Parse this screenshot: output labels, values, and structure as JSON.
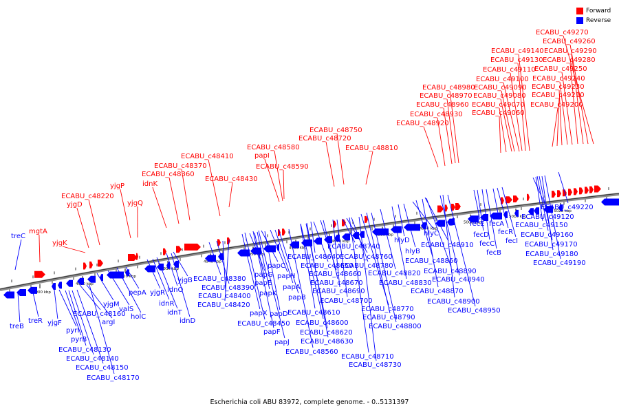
{
  "legend": [
    {
      "label": "Forward",
      "color": "#ff0000"
    },
    {
      "label": "Reverse",
      "color": "#0000ff"
    }
  ],
  "caption": "Escherichia coli ABU 83972, complete genome. - 0..5131397",
  "colors": {
    "forward": "#ff0000",
    "reverse": "#0000ff",
    "backbone": "#888888"
  },
  "scale_ticks": [
    "4900 kbp",
    "4910 kbp",
    "4920 kbp",
    "4930 kbp",
    "4940 kbp",
    "4950 kbp",
    "4960 kbp",
    "4970 kbp",
    "4980 kbp",
    "4990 kbp",
    "5000 kbp",
    "5010 kbp",
    "5020 kbp"
  ],
  "forward_labels": [
    "mgtA",
    "yjgK",
    "yjgD",
    "ECABU_c48220",
    "yjgP",
    "yjgQ",
    "idnK",
    "ECABU_c48360",
    "ECABU_c48370",
    "ECABU_c48410",
    "ECABU_c48430",
    "papI",
    "ECABU_c48580",
    "ECABU_c48590",
    "ECABU_c48720",
    "ECABU_c48750",
    "ECABU_c48810",
    "ECABU_c48920",
    "ECABU_c48930",
    "ECABU_c48960",
    "ECABU_c48970",
    "ECABU_c48980",
    "ECABU_c49060",
    "ECABU_c49070",
    "ECABU_c49080",
    "ECABU_c49090",
    "ECABU_c49100",
    "ECABU_c49110",
    "ECABU_c49130",
    "ECABU_c49140",
    "ECABU_c49200",
    "ECABU_c49210",
    "ECABU_c49230",
    "ECABU_c49240",
    "ECABU_c49250",
    "ECABU_c49280",
    "ECABU_c49290",
    "ECABU_c49260",
    "ECABU_c49270"
  ],
  "reverse_labels": [
    "treC",
    "treB",
    "treR",
    "yjgF",
    "pyrI",
    "pyrB",
    "ECABU_c48130",
    "ECABU_c48140",
    "ECABU_c48150",
    "ECABU_c48160",
    "argI",
    "ECABU_c48170",
    "yjgM",
    "valS",
    "holC",
    "pepA",
    "yjgR",
    "idnR",
    "idnT",
    "idnO",
    "yjgB",
    "idnD",
    "ECABU_c48380",
    "ECABU_c48390",
    "ECABU_c48400",
    "ECABU_c48420",
    "papX",
    "ECABU_c48450",
    "papF",
    "papJ",
    "papG",
    "papE",
    "papK",
    "papD",
    "papC",
    "papH",
    "papA",
    "papB",
    "ECABU_c48560",
    "ECABU_c48610",
    "ECABU_c48600",
    "ECABU_c48620",
    "ECABU_c48630",
    "ECABU_c48640",
    "ECABU_c48650",
    "ECABU_c48660",
    "ECABU_c48670",
    "ECABU_c48690",
    "ECABU_c48700",
    "ECABU_c48710",
    "ECABU_c48730",
    "ECABU_c48740",
    "ECABU_c48760",
    "ECABU_c48780",
    "ECABU_c48770",
    "ECABU_c48790",
    "ECABU_c48800",
    "ECABU_c48820",
    "ECABU_c48830",
    "hlyD",
    "hlyB",
    "hlyC",
    "ECABU_c48910",
    "ECABU_c48860",
    "ECABU_c48890",
    "ECABU_c48870",
    "ECABU_c48940",
    "ECABU_c48900",
    "ECABU_c48950",
    "fecE",
    "fecD",
    "fecC",
    "fecB",
    "fecA",
    "fecR",
    "fecI",
    "ECABU_c49220",
    "ECABU_c49120",
    "ECABU_c49150",
    "ECABU_c49160",
    "ECABU_c49170",
    "ECABU_c49180",
    "ECABU_c49190"
  ]
}
